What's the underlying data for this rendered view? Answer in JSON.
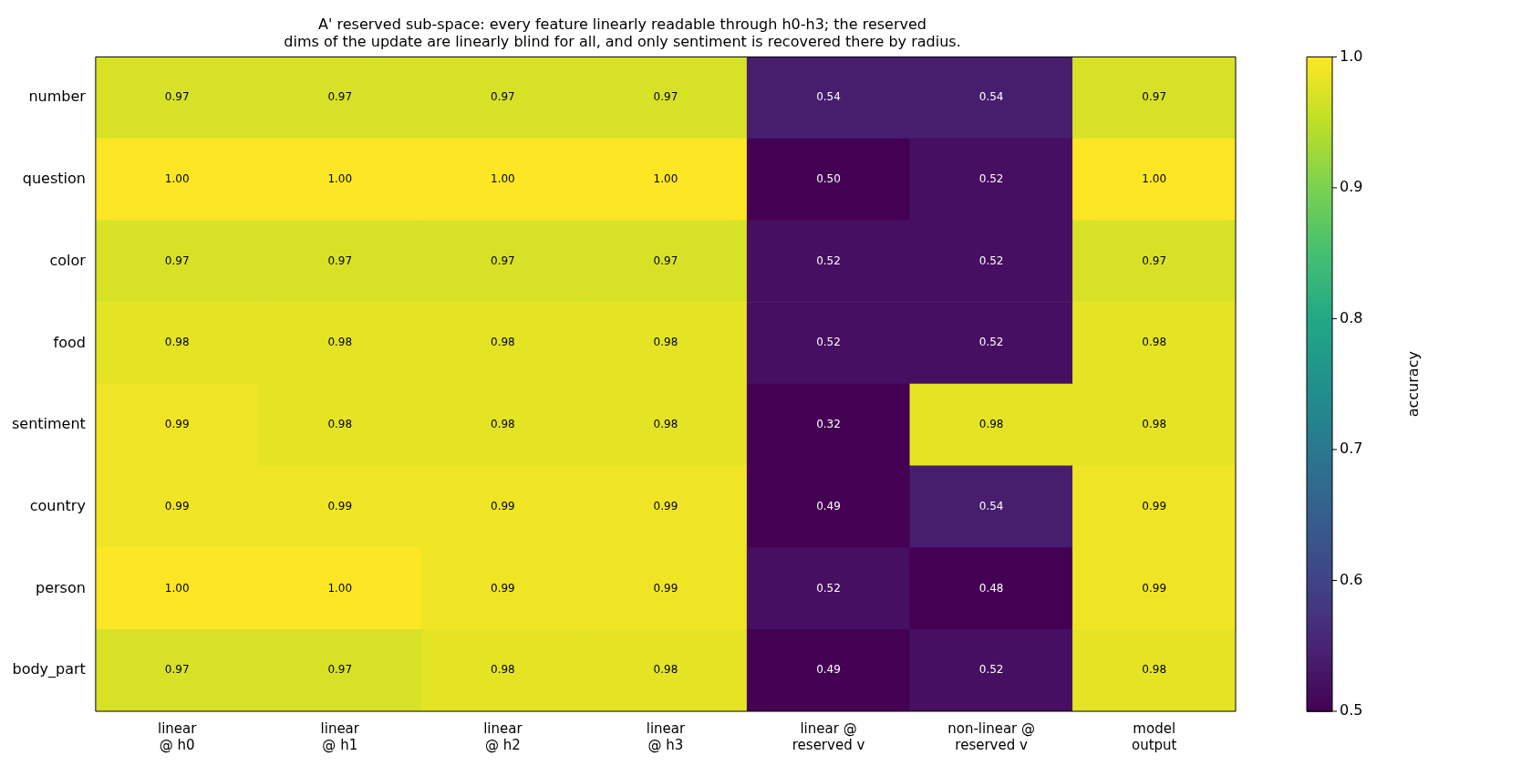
{
  "chart_data": {
    "type": "heatmap",
    "title": "A' reserved sub-space: every feature linearly readable through h0-h3; the reserved\ndims of the update are linearly blind for all, and only sentiment is recovered there by radius.",
    "categories": [
      "linear\n@ h0",
      "linear\n@ h1",
      "linear\n@ h2",
      "linear\n@ h3",
      "linear @\nreserved v",
      "non-linear @\nreserved v",
      "model\noutput"
    ],
    "y_categories": [
      "number",
      "question",
      "color",
      "food",
      "sentiment",
      "country",
      "person",
      "body_part"
    ],
    "cells": [
      [
        0.97,
        0.97,
        0.97,
        0.97,
        0.54,
        0.54,
        0.97
      ],
      [
        1.0,
        1.0,
        1.0,
        1.0,
        0.5,
        0.52,
        1.0
      ],
      [
        0.97,
        0.97,
        0.97,
        0.97,
        0.52,
        0.52,
        0.97
      ],
      [
        0.98,
        0.98,
        0.98,
        0.98,
        0.52,
        0.52,
        0.98
      ],
      [
        0.99,
        0.98,
        0.98,
        0.98,
        0.32,
        0.98,
        0.98
      ],
      [
        0.99,
        0.99,
        0.99,
        0.99,
        0.49,
        0.54,
        0.99
      ],
      [
        1.0,
        1.0,
        0.99,
        0.99,
        0.52,
        0.48,
        0.99
      ],
      [
        0.97,
        0.97,
        0.98,
        0.98,
        0.49,
        0.52,
        0.98
      ]
    ],
    "cell_labels": [
      [
        "0.97",
        "0.97",
        "0.97",
        "0.97",
        "0.54",
        "0.54",
        "0.97"
      ],
      [
        "1.00",
        "1.00",
        "1.00",
        "1.00",
        "0.50",
        "0.52",
        "1.00"
      ],
      [
        "0.97",
        "0.97",
        "0.97",
        "0.97",
        "0.52",
        "0.52",
        "0.97"
      ],
      [
        "0.98",
        "0.98",
        "0.98",
        "0.98",
        "0.52",
        "0.52",
        "0.98"
      ],
      [
        "0.99",
        "0.98",
        "0.98",
        "0.98",
        "0.32",
        "0.98",
        "0.98"
      ],
      [
        "0.99",
        "0.99",
        "0.99",
        "0.99",
        "0.49",
        "0.54",
        "0.99"
      ],
      [
        "1.00",
        "1.00",
        "0.99",
        "0.99",
        "0.52",
        "0.48",
        "0.99"
      ],
      [
        "0.97",
        "0.97",
        "0.98",
        "0.98",
        "0.49",
        "0.52",
        "0.98"
      ]
    ],
    "clim": [
      0.5,
      1.0
    ],
    "cticks": [
      0.5,
      0.6,
      0.7,
      0.8,
      0.9,
      {
        "value": 1.0,
        "label": "1.0"
      }
    ],
    "clabel": "accuracy"
  }
}
